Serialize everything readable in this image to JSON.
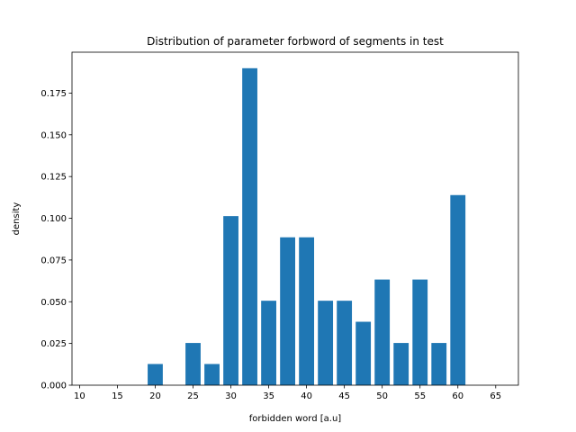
{
  "chart_data": {
    "type": "bar",
    "title": "Distribution of parameter forbword of segments in test",
    "xlabel": "forbidden word [a.u]",
    "ylabel": "density",
    "xlim": [
      9.0,
      68.0
    ],
    "ylim": [
      0.0,
      0.1995
    ],
    "bar_width": 2.0,
    "bar_color": "#1f77b4",
    "grid": false,
    "x_ticks": [
      10,
      15,
      20,
      25,
      30,
      35,
      40,
      45,
      50,
      55,
      60,
      65
    ],
    "y_ticks": [
      0.0,
      0.025,
      0.05,
      0.075,
      0.1,
      0.125,
      0.15,
      0.175
    ],
    "x_tick_labels": [
      "10",
      "15",
      "20",
      "25",
      "30",
      "35",
      "40",
      "45",
      "50",
      "55",
      "60",
      "65"
    ],
    "y_tick_labels": [
      "0.000",
      "0.025",
      "0.050",
      "0.075",
      "0.100",
      "0.125",
      "0.150",
      "0.175"
    ],
    "x": [
      20,
      25,
      27.5,
      30,
      32.5,
      35,
      37.5,
      40,
      42.5,
      45,
      47.5,
      50,
      52.5,
      55,
      57.5,
      60
    ],
    "values": [
      0.0127,
      0.0253,
      0.0127,
      0.1013,
      0.1899,
      0.0506,
      0.0886,
      0.0886,
      0.0506,
      0.0506,
      0.038,
      0.0633,
      0.0253,
      0.0633,
      0.0253,
      0.1139
    ]
  }
}
